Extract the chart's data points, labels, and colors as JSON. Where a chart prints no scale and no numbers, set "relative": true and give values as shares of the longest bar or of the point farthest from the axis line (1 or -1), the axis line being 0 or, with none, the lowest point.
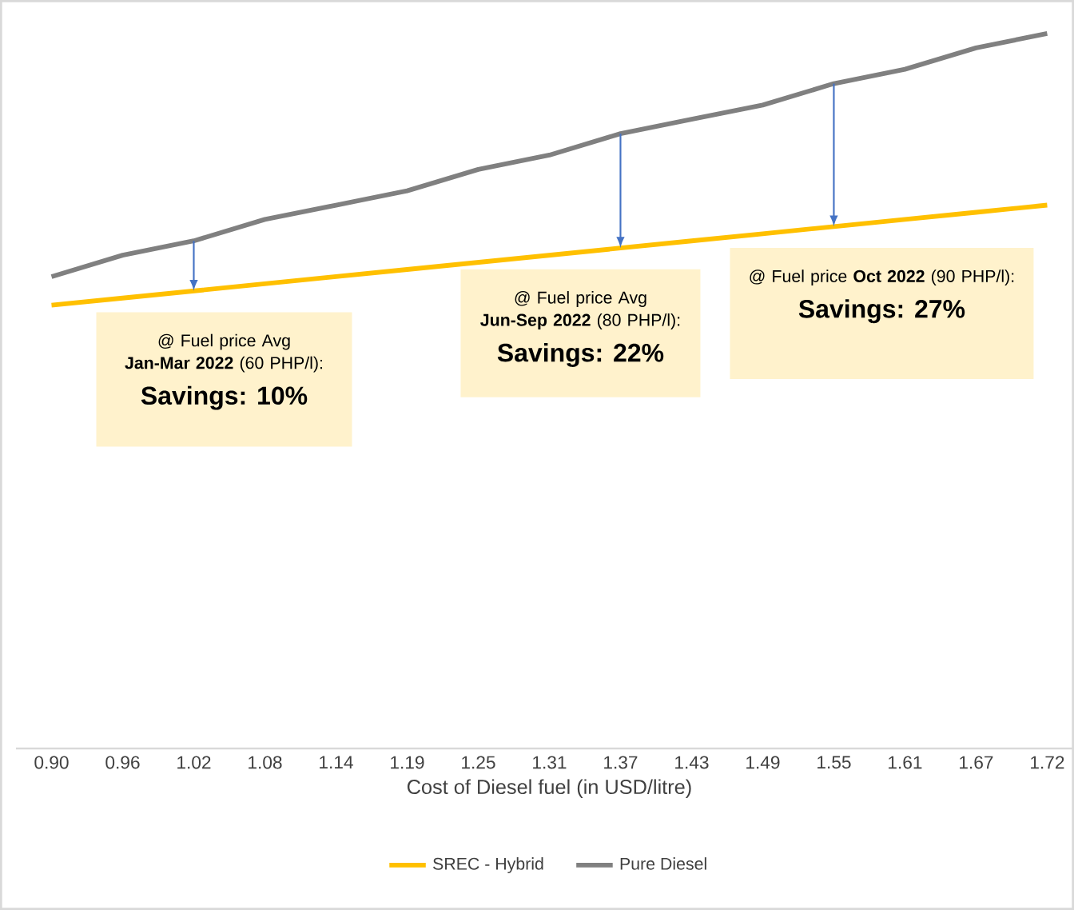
{
  "chart_data": {
    "type": "line",
    "relative": true,
    "xlabel": "Cost of Diesel fuel (in USD/litre)",
    "categories": [
      "0.90",
      "0.96",
      "1.02",
      "1.08",
      "1.14",
      "1.19",
      "1.25",
      "1.31",
      "1.37",
      "1.43",
      "1.49",
      "1.55",
      "1.61",
      "1.67",
      "1.72"
    ],
    "series": [
      {
        "name": "SREC - Hybrid",
        "color": "#ffc000",
        "values": [
          0.62,
          0.63,
          0.64,
          0.65,
          0.66,
          0.67,
          0.68,
          0.69,
          0.7,
          0.71,
          0.72,
          0.73,
          0.74,
          0.75,
          0.76
        ]
      },
      {
        "name": "Pure Diesel",
        "color": "#808080",
        "values": [
          0.66,
          0.69,
          0.71,
          0.74,
          0.76,
          0.78,
          0.81,
          0.83,
          0.86,
          0.88,
          0.9,
          0.93,
          0.95,
          0.98,
          1.0
        ]
      }
    ],
    "legend": "bottom",
    "annotations": [
      {
        "text": "@ Fuel price Avg **Jan-Mar 2022** (60 PHP/l):",
        "x": "1.02",
        "y": 0.64
      },
      "**Savings: 10%**",
      {
        "text": "@ Fuel price Avg **Jun-Sep 2022** (80 PHP/l):",
        "x": "1.37",
        "y": 0.7
      },
      "**Savings: 22%**",
      {
        "text": "@ Fuel price **Oct 2022** (90 PHP/l):",
        "x": "1.55",
        "y": 0.73
      },
      "**Savings: 27%**"
    ]
  }
}
